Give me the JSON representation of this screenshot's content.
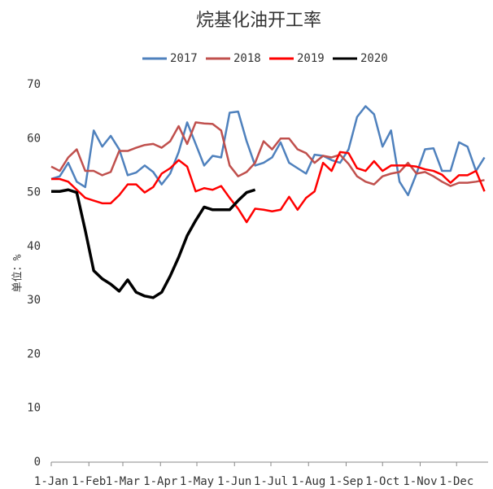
{
  "chart_data": {
    "type": "line",
    "title": "烷基化油开工率",
    "y_label": "单位：%",
    "x": [
      0,
      7,
      14,
      21,
      28,
      35,
      42,
      49,
      56,
      63,
      70,
      77,
      84,
      91,
      98,
      105,
      112,
      119,
      126,
      133,
      140,
      147,
      154,
      161,
      168,
      175,
      182,
      189,
      196,
      203,
      210,
      217,
      224,
      231,
      238,
      245,
      252,
      259,
      266,
      273,
      280,
      287,
      294,
      301,
      308,
      315,
      322,
      329,
      336,
      343,
      350,
      357
    ],
    "xlim": [
      0,
      360
    ],
    "xticks": [
      {
        "value": 0,
        "label": "1-Jan"
      },
      {
        "value": 31,
        "label": "1-Feb"
      },
      {
        "value": 59,
        "label": "1-Mar"
      },
      {
        "value": 90,
        "label": "1-Apr"
      },
      {
        "value": 120,
        "label": "1-May"
      },
      {
        "value": 151,
        "label": "1-Jun"
      },
      {
        "value": 181,
        "label": "1-Jul"
      },
      {
        "value": 212,
        "label": "1-Aug"
      },
      {
        "value": 243,
        "label": "1-Sep"
      },
      {
        "value": 273,
        "label": "1-Oct"
      },
      {
        "value": 304,
        "label": "1-Nov"
      },
      {
        "value": 334,
        "label": "1-Dec"
      }
    ],
    "ylim": [
      0,
      70
    ],
    "yticks": [
      0,
      10,
      20,
      30,
      40,
      50,
      60,
      70
    ],
    "grid": false,
    "legend": "top",
    "series": [
      {
        "name": "2017",
        "color": "#4f81bd",
        "values": [
          52.5,
          53,
          55.5,
          52,
          51,
          61.5,
          58.5,
          60.5,
          58,
          53.2,
          53.7,
          55,
          53.8,
          51.5,
          53.5,
          57.5,
          63,
          59,
          55,
          56.8,
          56.5,
          64.8,
          65,
          59.5,
          55,
          55.5,
          56.5,
          59.3,
          55.5,
          54.5,
          53.5,
          57,
          56.8,
          56,
          55.5,
          58,
          64,
          66,
          64.5,
          58.5,
          61.5,
          52,
          49.5,
          53.5,
          58,
          58.2,
          54,
          54,
          59.3,
          58.5,
          54,
          56.5
        ]
      },
      {
        "name": "2018",
        "color": "#c0504d",
        "values": [
          54.8,
          54,
          56.5,
          58,
          54,
          54,
          53.2,
          53.8,
          57.7,
          57.7,
          58.3,
          58.8,
          59,
          58.3,
          59.5,
          62.3,
          59,
          63,
          62.8,
          62.7,
          61.5,
          55,
          53,
          53.8,
          55.5,
          59.5,
          58,
          60,
          60,
          58,
          57.3,
          55.5,
          56.8,
          56.5,
          57,
          55.3,
          53,
          52,
          51.5,
          53,
          53.5,
          53.8,
          55.5,
          53.5,
          53.8,
          53,
          52,
          51.2,
          51.8,
          51.8,
          52,
          52.3
        ]
      },
      {
        "name": "2019",
        "color": "#ff0000",
        "values": [
          52.5,
          52.5,
          52,
          50.5,
          49,
          48.5,
          48,
          48,
          49.5,
          51.5,
          51.5,
          50,
          51,
          53.5,
          54.5,
          56,
          54.8,
          50.2,
          50.8,
          50.5,
          51.2,
          49,
          47,
          44.5,
          47,
          46.8,
          46.5,
          46.8,
          49.2,
          46.8,
          49,
          50.2,
          55.5,
          54,
          57.5,
          57.3,
          54.5,
          54,
          55.8,
          54,
          55,
          55,
          55,
          54.8,
          54.3,
          54,
          53.3,
          51.8,
          53.2,
          53.2,
          54,
          50.2
        ]
      },
      {
        "name": "2020",
        "color": "#000000",
        "values": [
          50.2,
          50.2,
          50.5,
          50,
          43,
          35.5,
          34,
          33,
          31.7,
          33.8,
          31.5,
          30.8,
          30.5,
          31.5,
          34.5,
          38,
          42,
          44.8,
          47.3,
          46.8,
          46.8,
          46.8,
          48.5,
          50,
          50.5,
          null,
          null,
          null,
          null,
          null,
          null,
          null,
          null,
          null,
          null,
          null,
          null,
          null,
          null,
          null,
          null,
          null,
          null,
          null,
          null,
          null,
          null,
          null,
          null,
          null,
          null,
          null
        ]
      }
    ]
  }
}
